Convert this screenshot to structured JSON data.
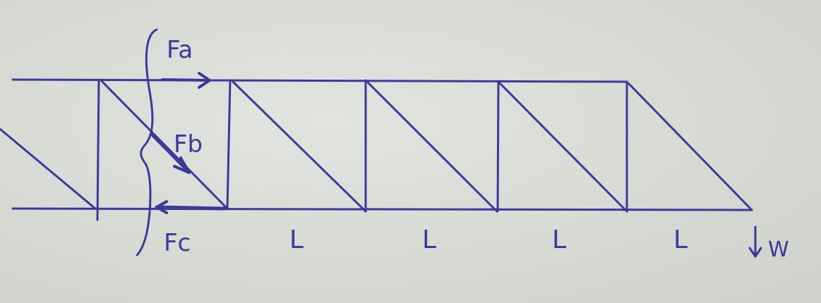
{
  "diagram": {
    "labels": {
      "fa": "Fa",
      "fb": "Fb",
      "fc": "Fc",
      "w": "W",
      "panel_lengths": [
        "L",
        "L",
        "L",
        "L"
      ]
    },
    "colors": {
      "ink": "#3a3a9a",
      "paper": "#d9dcd6"
    },
    "icons": [
      "arrow-right-icon",
      "arrow-down-icon",
      "arrow-left-icon"
    ]
  }
}
